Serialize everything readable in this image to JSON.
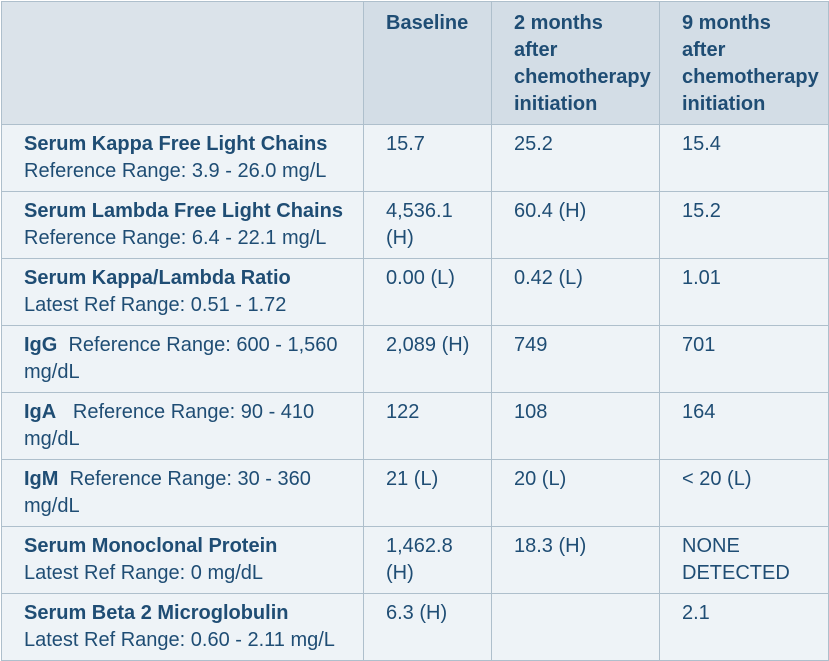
{
  "headers": [
    "",
    "Baseline",
    "2 months after chemotherapy initiation",
    "9 months after chemotherapy initiation"
  ],
  "rows": [
    {
      "name": "Serum Kappa Free Light Chains",
      "ref": "Reference Range: 3.9 - 26.0 mg/L",
      "baseline": "15.7",
      "two_months": "25.2",
      "nine_months": "15.4"
    },
    {
      "name": "Serum Lambda Free Light Chains",
      "ref": "Reference Range: 6.4 - 22.1 mg/L",
      "baseline": "4,536.1 (H)",
      "two_months": "60.4 (H)",
      "nine_months": "15.2"
    },
    {
      "name": "Serum Kappa/Lambda Ratio",
      "ref": "Latest Ref Range: 0.51 - 1.72",
      "baseline": "0.00 (L)",
      "two_months": "0.42 (L)",
      "nine_months": "1.01"
    },
    {
      "name": "IgG",
      "ref": "Reference Range: 600 - 1,560 mg/dL",
      "baseline": "2,089 (H)",
      "two_months": "749",
      "nine_months": "701"
    },
    {
      "name": "IgA",
      "ref": "Reference Range: 90 - 410 mg/dL",
      "baseline": "122",
      "two_months": "108",
      "nine_months": "164"
    },
    {
      "name": "IgM",
      "ref": "Reference Range: 30 - 360 mg/dL",
      "baseline": "21 (L)",
      "two_months": "20 (L)",
      "nine_months": "< 20 (L)"
    },
    {
      "name": "Serum Monoclonal Protein",
      "ref": "Latest Ref Range: 0 mg/dL",
      "baseline": "1,462.8 (H)",
      "two_months": "18.3 (H)",
      "nine_months": "NONE DETECTED"
    },
    {
      "name": "Serum Beta 2 Microglobulin",
      "ref": "Latest Ref Range: 0.60 - 2.11 mg/L",
      "baseline": "6.3 (H)",
      "two_months": "",
      "nine_months": "2.1"
    }
  ]
}
